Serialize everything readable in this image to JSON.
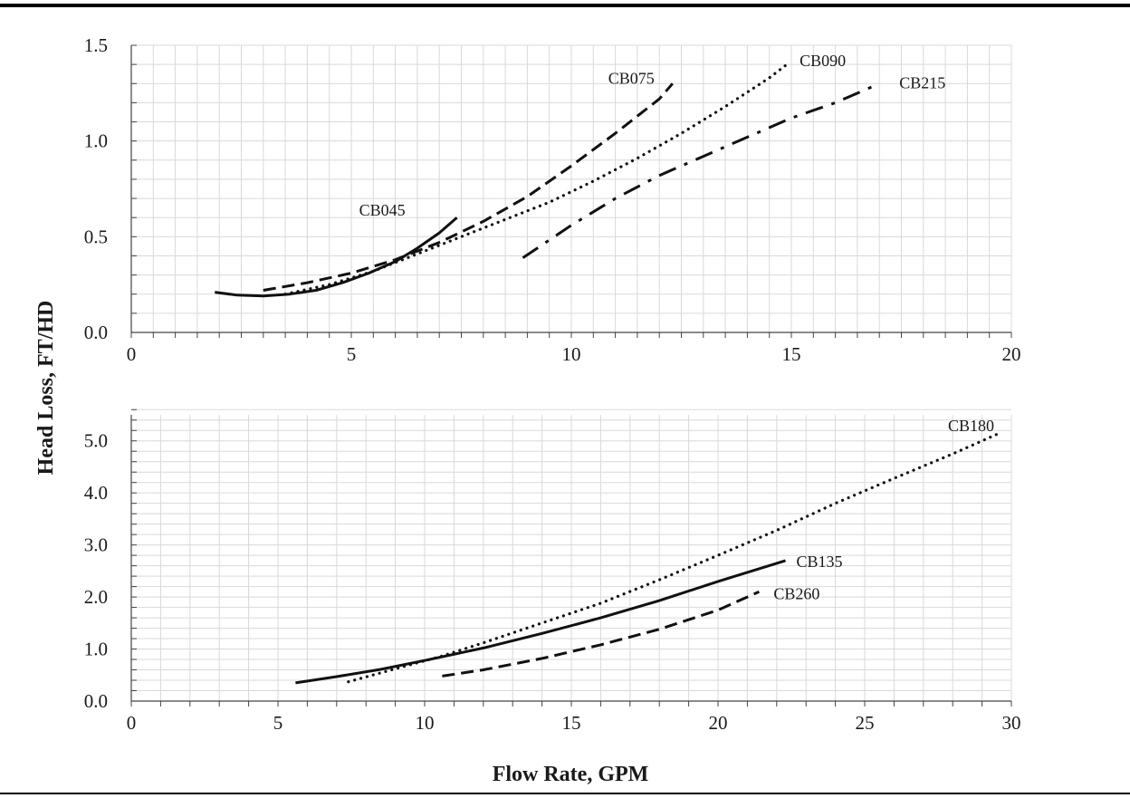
{
  "xlabel": "Flow Rate, GPM",
  "ylabel": "Head Loss, FT/HD",
  "chart_data": [
    {
      "type": "line",
      "title": "",
      "xlim": [
        0,
        20
      ],
      "ylim": [
        0,
        1.5
      ],
      "xticks": [
        0,
        5,
        10,
        15,
        20
      ],
      "yticks": [
        0.0,
        0.5,
        1.0,
        1.5
      ],
      "ytick_labels": [
        "0.0",
        "0.5",
        "1.0",
        "1.5"
      ],
      "grid": true,
      "series": [
        {
          "name": "CB045",
          "line_style": "solid",
          "points": [
            [
              1.9,
              0.21
            ],
            [
              2.4,
              0.195
            ],
            [
              3.0,
              0.19
            ],
            [
              3.6,
              0.2
            ],
            [
              4.2,
              0.22
            ],
            [
              4.8,
              0.26
            ],
            [
              5.4,
              0.31
            ],
            [
              6.0,
              0.37
            ],
            [
              6.5,
              0.44
            ],
            [
              7.0,
              0.52
            ],
            [
              7.4,
              0.6
            ]
          ]
        },
        {
          "name": "CB075",
          "line_style": "dashed",
          "points": [
            [
              3.0,
              0.22
            ],
            [
              4.0,
              0.26
            ],
            [
              5.0,
              0.31
            ],
            [
              6.0,
              0.38
            ],
            [
              7.0,
              0.47
            ],
            [
              8.0,
              0.58
            ],
            [
              9.0,
              0.71
            ],
            [
              10.0,
              0.87
            ],
            [
              11.0,
              1.04
            ],
            [
              12.0,
              1.22
            ],
            [
              12.3,
              1.3
            ]
          ]
        },
        {
          "name": "CB090",
          "line_style": "dotted",
          "points": [
            [
              3.5,
              0.2
            ],
            [
              4.5,
              0.25
            ],
            [
              5.5,
              0.32
            ],
            [
              6.5,
              0.41
            ],
            [
              7.5,
              0.5
            ],
            [
              8.5,
              0.59
            ],
            [
              9.5,
              0.68
            ],
            [
              10.5,
              0.79
            ],
            [
              11.5,
              0.91
            ],
            [
              12.5,
              1.04
            ],
            [
              13.5,
              1.18
            ],
            [
              14.5,
              1.33
            ],
            [
              14.9,
              1.4
            ]
          ]
        },
        {
          "name": "CB215",
          "line_style": "dash-dot",
          "points": [
            [
              8.9,
              0.39
            ],
            [
              10.0,
              0.56
            ],
            [
              11.0,
              0.7
            ],
            [
              12.0,
              0.82
            ],
            [
              13.0,
              0.92
            ],
            [
              14.0,
              1.02
            ],
            [
              15.0,
              1.12
            ],
            [
              16.0,
              1.2
            ],
            [
              17.0,
              1.3
            ]
          ]
        }
      ]
    },
    {
      "type": "line",
      "title": "",
      "xlim": [
        0,
        30
      ],
      "ylim": [
        0,
        5.5
      ],
      "xticks": [
        0,
        5,
        10,
        15,
        20,
        25,
        30
      ],
      "yticks": [
        0.0,
        1.0,
        2.0,
        3.0,
        4.0,
        5.0
      ],
      "ytick_labels": [
        "0.0",
        "1.0",
        "2.0",
        "3.0",
        "4.0",
        "5.0"
      ],
      "grid": true,
      "series": [
        {
          "name": "CB135",
          "line_style": "solid",
          "points": [
            [
              5.6,
              0.35
            ],
            [
              7.0,
              0.47
            ],
            [
              8.5,
              0.61
            ],
            [
              10.0,
              0.78
            ],
            [
              12.0,
              1.02
            ],
            [
              14.0,
              1.3
            ],
            [
              16.0,
              1.6
            ],
            [
              18.0,
              1.93
            ],
            [
              20.0,
              2.3
            ],
            [
              22.3,
              2.7
            ]
          ]
        },
        {
          "name": "CB180",
          "line_style": "dotted",
          "points": [
            [
              7.4,
              0.37
            ],
            [
              9.0,
              0.62
            ],
            [
              10.5,
              0.85
            ],
            [
              12.0,
              1.12
            ],
            [
              14.0,
              1.5
            ],
            [
              16.0,
              1.88
            ],
            [
              18.0,
              2.33
            ],
            [
              20.0,
              2.8
            ],
            [
              22.0,
              3.28
            ],
            [
              24.0,
              3.8
            ],
            [
              26.0,
              4.28
            ],
            [
              28.0,
              4.75
            ],
            [
              29.6,
              5.15
            ]
          ]
        },
        {
          "name": "CB260",
          "line_style": "dashed",
          "points": [
            [
              10.6,
              0.48
            ],
            [
              12.0,
              0.6
            ],
            [
              14.0,
              0.82
            ],
            [
              16.0,
              1.08
            ],
            [
              18.0,
              1.38
            ],
            [
              20.0,
              1.75
            ],
            [
              21.4,
              2.1
            ]
          ]
        }
      ]
    }
  ]
}
